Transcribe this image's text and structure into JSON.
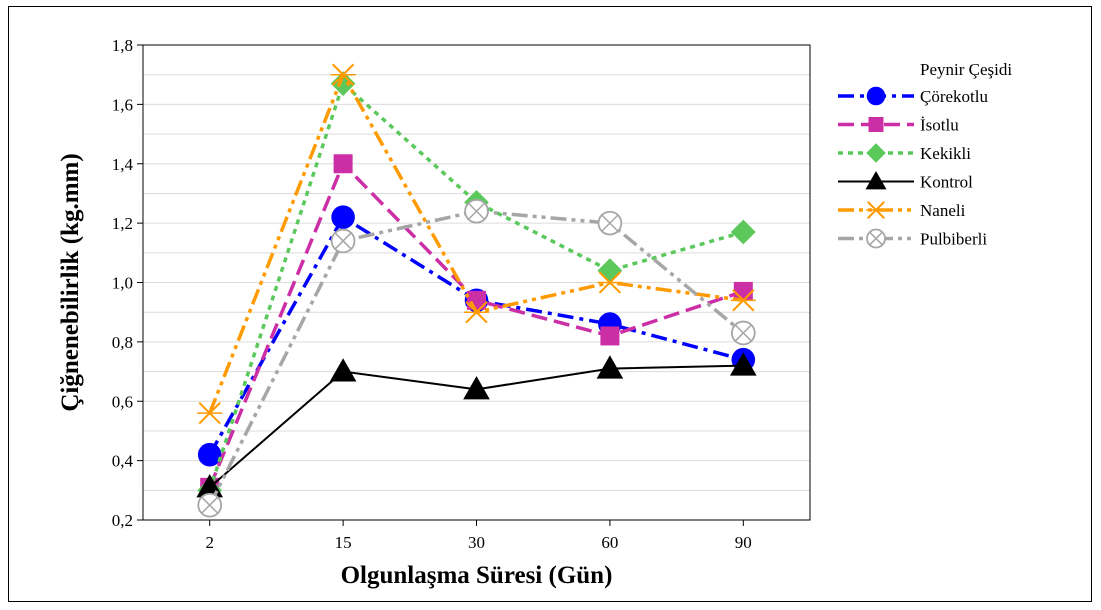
{
  "chart_data": {
    "type": "line",
    "categories": [
      "2",
      "15",
      "30",
      "60",
      "90"
    ],
    "xlabel": "Olgunlaşma Süresi (Gün)",
    "ylabel": "Çiğnenebilirlik (kg.mm)",
    "ylim": [
      0.2,
      1.8
    ],
    "yticks": [
      "0,2",
      "0,4",
      "0,6",
      "0,8",
      "1,0",
      "1,2",
      "1,4",
      "1,6",
      "1,8"
    ],
    "grid": true,
    "legend": {
      "title": "Peynir Çeşidi",
      "position": "right"
    },
    "series": [
      {
        "name": "Çörekotlu",
        "values": [
          0.42,
          1.22,
          0.94,
          0.86,
          0.74
        ],
        "color": "#0000ff",
        "marker": "circle",
        "dash": "dashdot"
      },
      {
        "name": "İsotlu",
        "values": [
          0.31,
          1.4,
          0.94,
          0.82,
          0.97
        ],
        "color": "#cc2ea6",
        "marker": "square",
        "dash": "dash"
      },
      {
        "name": "Kekikli",
        "values": [
          0.3,
          1.67,
          1.27,
          1.04,
          1.17
        ],
        "color": "#5ac85a",
        "marker": "diamond",
        "dash": "dot"
      },
      {
        "name": "Kontrol",
        "values": [
          0.31,
          0.7,
          0.64,
          0.71,
          0.72
        ],
        "color": "#000000",
        "marker": "triangle",
        "dash": "solid"
      },
      {
        "name": "Naneli",
        "values": [
          0.56,
          1.7,
          0.9,
          1.0,
          0.94
        ],
        "color": "#ff9a00",
        "marker": "x",
        "dash": "dashdotdot"
      },
      {
        "name": "Pulbiberli",
        "values": [
          0.25,
          1.14,
          1.24,
          1.2,
          0.83
        ],
        "color": "#a6a6a6",
        "marker": "circlex",
        "dash": "dashdotdot"
      }
    ]
  }
}
